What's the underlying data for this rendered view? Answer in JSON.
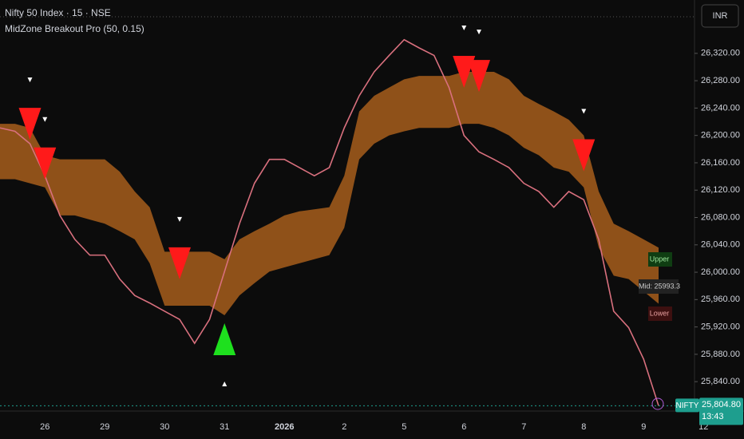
{
  "chart_data": {
    "type": "line",
    "title": "Nifty 50 Index · 15 · NSE",
    "subtitle": "MidZone Breakout Pro (50, 0.15)",
    "currency": "INR",
    "symbol": "NIFTY",
    "countdown": "13:43",
    "band_labels": [
      "Upper",
      "Mid: 25993.3",
      "Lower"
    ],
    "last_price": {
      "value": 25804.8,
      "label": "25,804.80"
    },
    "categories": [
      null,
      null,
      null,
      "26",
      null,
      null,
      null,
      "29",
      null,
      null,
      null,
      "30",
      null,
      null,
      null,
      "31",
      null,
      null,
      null,
      "2026",
      null,
      null,
      null,
      "2",
      null,
      null,
      null,
      "5",
      null,
      null,
      null,
      "6",
      null,
      null,
      null,
      "7",
      null,
      null,
      null,
      "8",
      null,
      null,
      null,
      "9",
      null,
      null,
      null,
      "12"
    ],
    "series": [
      {
        "name": "Price",
        "color": "#d9707e",
        "values": [
          26211,
          26206,
          26188,
          26141,
          26083,
          26048,
          26025,
          26025,
          25990,
          25966,
          25955,
          25943,
          25931,
          25896,
          25931,
          26001,
          26071,
          26130,
          26165,
          26165,
          26153,
          26141,
          26153,
          26211,
          26258,
          26293,
          26317,
          26340,
          26328,
          26317,
          26270,
          26200,
          26176,
          26165,
          26153,
          26130,
          26118,
          26095,
          26118,
          26106,
          26048,
          25943,
          25919,
          25873,
          25804.8,
          null,
          null,
          null
        ]
      },
      {
        "name": "Upper",
        "color": "#b5651d",
        "values": [
          26217,
          26217,
          26211,
          26171,
          26165,
          26165,
          26165,
          26165,
          26147,
          26118,
          26095,
          26030,
          26030,
          26030,
          26030,
          26019,
          26048,
          26060,
          26071,
          26083,
          26089,
          26092,
          26095,
          26141,
          26235,
          26258,
          26270,
          26282,
          26287,
          26287,
          26287,
          26293,
          26293,
          26293,
          26282,
          26258,
          26246,
          26235,
          26223,
          26200,
          26118,
          26071,
          26060,
          26048,
          26036,
          null,
          null,
          null
        ]
      },
      {
        "name": "Lower",
        "color": "#b5651d",
        "values": [
          26136,
          26136,
          26130,
          26124,
          26083,
          26083,
          26077,
          26071,
          26060,
          26048,
          26013,
          25951,
          25951,
          25951,
          25951,
          25937,
          25966,
          25984,
          26001,
          26007,
          26013,
          26019,
          26025,
          26065,
          26165,
          26188,
          26200,
          26206,
          26211,
          26211,
          26211,
          26217,
          26217,
          26211,
          26200,
          26182,
          26171,
          26153,
          26147,
          26124,
          26036,
          25995,
          25990,
          25972,
          25954,
          null,
          null,
          null
        ]
      },
      {
        "name": "Sell",
        "color": "#ff1a1a",
        "values": [
          null,
          null,
          26217,
          26159,
          null,
          null,
          null,
          null,
          null,
          null,
          null,
          null,
          26013,
          null,
          null,
          null,
          null,
          null,
          null,
          null,
          null,
          null,
          null,
          null,
          null,
          null,
          null,
          null,
          null,
          null,
          null,
          26293,
          26287,
          null,
          null,
          null,
          null,
          null,
          null,
          26171,
          null,
          null,
          null,
          null,
          null,
          null,
          null,
          null
        ]
      },
      {
        "name": "Buy",
        "color": "#1ee01e",
        "values": [
          null,
          null,
          null,
          null,
          null,
          null,
          null,
          null,
          null,
          null,
          null,
          null,
          null,
          null,
          null,
          25902,
          null,
          null,
          null,
          null,
          null,
          null,
          null,
          null,
          null,
          null,
          null,
          null,
          null,
          null,
          null,
          null,
          null,
          null,
          null,
          null,
          null,
          null,
          null,
          null,
          null,
          null,
          null,
          null,
          null,
          null,
          null,
          null
        ]
      }
    ],
    "ylim": [
      25797,
      26398
    ],
    "yticks": [
      {
        "value": 26320,
        "label": "26,320.00"
      },
      {
        "value": 26280,
        "label": "26,280.00"
      },
      {
        "value": 26240,
        "label": "26,240.00"
      },
      {
        "value": 26200,
        "label": "26,200.00"
      },
      {
        "value": 26160,
        "label": "26,160.00"
      },
      {
        "value": 26120,
        "label": "26,120.00"
      },
      {
        "value": 26080,
        "label": "26,080.00"
      },
      {
        "value": 26040,
        "label": "26,040.00"
      },
      {
        "value": 26000,
        "label": "26,000.00"
      },
      {
        "value": 25960,
        "label": "25,960.00"
      },
      {
        "value": 25920,
        "label": "25,920.00"
      },
      {
        "value": 25880,
        "label": "25,880.00"
      },
      {
        "value": 25840,
        "label": "25,840.00"
      }
    ],
    "grid": false
  }
}
